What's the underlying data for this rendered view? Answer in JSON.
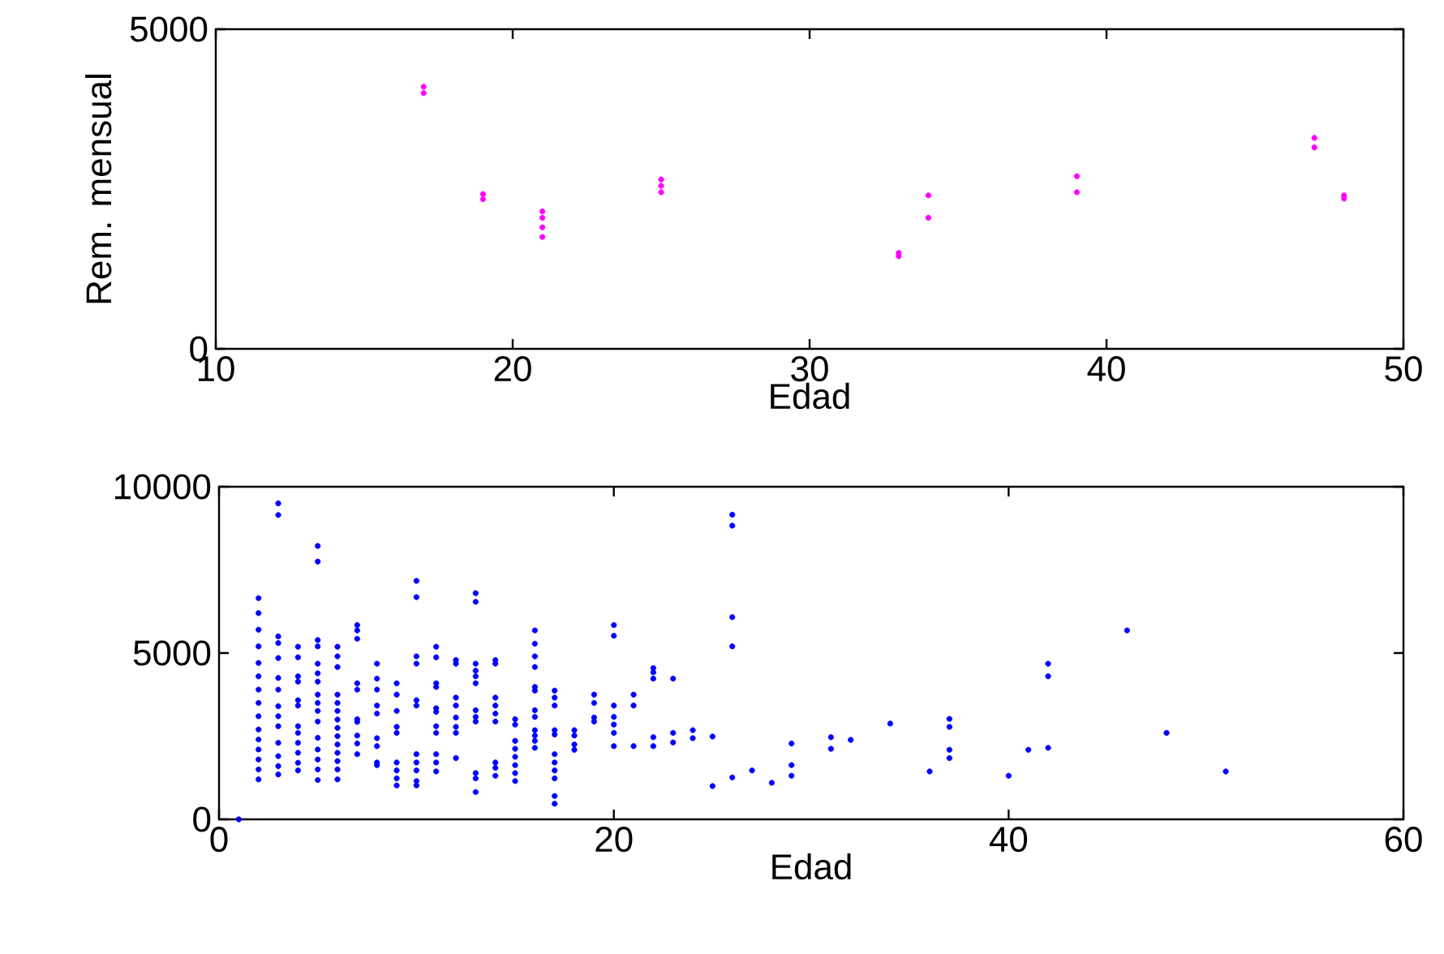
{
  "chart_data": [
    {
      "type": "scatter",
      "xlabel": "Edad",
      "ylabel": "Rem. mensual",
      "color": "#ff00ff",
      "marker": "circle",
      "xlim": [
        10,
        50
      ],
      "ylim": [
        0,
        5000
      ],
      "xticks": [
        10,
        20,
        30,
        40,
        50
      ],
      "yticks": [
        0,
        5000
      ],
      "x": [
        17,
        17,
        19,
        19,
        21,
        21,
        21,
        21,
        25,
        25,
        25,
        33,
        33,
        34,
        34,
        39,
        39,
        47,
        47,
        48,
        48
      ],
      "values": [
        4100,
        4000,
        2420,
        2340,
        2150,
        2050,
        1900,
        1750,
        2650,
        2550,
        2450,
        1500,
        1450,
        2400,
        2050,
        2700,
        2450,
        3300,
        3150,
        2400,
        2350
      ]
    },
    {
      "type": "scatter",
      "xlabel": "Edad",
      "color": "#0000ff",
      "marker": "circle",
      "xlim": [
        0,
        60
      ],
      "ylim": [
        0,
        10000
      ],
      "xticks": [
        0,
        20,
        40,
        60
      ],
      "yticks": [
        0,
        5000,
        10000
      ],
      "x": [
        1,
        2,
        2,
        2,
        2,
        2,
        2,
        2,
        2,
        2,
        2,
        2,
        2,
        2,
        2,
        2,
        3,
        3,
        3,
        3,
        3,
        3,
        3,
        3,
        3,
        3,
        3,
        3,
        3,
        3,
        4,
        4,
        4,
        4,
        4,
        4,
        4,
        4,
        4,
        4,
        4,
        4,
        5,
        5,
        5,
        5,
        5,
        5,
        5,
        5,
        5,
        5,
        5,
        5,
        5,
        5,
        5,
        5,
        6,
        6,
        6,
        6,
        6,
        6,
        6,
        6,
        6,
        6,
        6,
        6,
        6,
        6,
        7,
        7,
        7,
        7,
        7,
        7,
        7,
        7,
        7,
        7,
        8,
        8,
        8,
        8,
        8,
        8,
        8,
        8,
        8,
        9,
        9,
        9,
        9,
        9,
        9,
        9,
        9,
        9,
        10,
        10,
        10,
        10,
        10,
        10,
        10,
        10,
        10,
        10,
        10,
        11,
        11,
        11,
        11,
        11,
        11,
        11,
        11,
        11,
        11,
        11,
        12,
        12,
        12,
        12,
        12,
        12,
        12,
        12,
        13,
        13,
        13,
        13,
        13,
        13,
        13,
        13,
        13,
        13,
        13,
        13,
        14,
        14,
        14,
        14,
        14,
        14,
        14,
        14,
        14,
        15,
        15,
        15,
        15,
        15,
        15,
        15,
        15,
        16,
        16,
        16,
        16,
        16,
        16,
        16,
        16,
        16,
        16,
        16,
        16,
        17,
        17,
        17,
        17,
        17,
        17,
        17,
        17,
        17,
        17,
        17,
        18,
        18,
        18,
        18,
        19,
        19,
        19,
        19,
        20,
        20,
        20,
        20,
        20,
        20,
        20,
        21,
        21,
        21,
        22,
        22,
        22,
        22,
        22,
        23,
        23,
        23,
        24,
        24,
        25,
        25,
        26,
        26,
        26,
        26,
        26,
        27,
        28,
        29,
        29,
        29,
        31,
        31,
        32,
        34,
        36,
        37,
        37,
        37,
        37,
        40,
        41,
        42,
        42,
        42,
        46,
        48,
        51
      ],
      "values": [
        0,
        6650,
        6200,
        5700,
        5200,
        4700,
        4300,
        3900,
        3500,
        3100,
        2700,
        2400,
        2100,
        1800,
        1500,
        1200,
        9500,
        9150,
        5500,
        5300,
        4850,
        4250,
        3900,
        3400,
        3100,
        2800,
        2300,
        1900,
        1600,
        1350,
        5190,
        4870,
        4300,
        4140,
        3580,
        3420,
        2800,
        2600,
        2300,
        2000,
        1700,
        1470,
        8220,
        7750,
        5390,
        5200,
        4680,
        4390,
        4140,
        3750,
        3500,
        3260,
        2940,
        2450,
        2100,
        1800,
        1500,
        1180,
        5190,
        4900,
        4580,
        3750,
        3500,
        3260,
        3000,
        2750,
        2500,
        2250,
        2000,
        1750,
        1500,
        1200,
        5840,
        5680,
        5430,
        4090,
        3900,
        3010,
        2930,
        2520,
        2280,
        1960,
        4680,
        4230,
        3900,
        3420,
        3180,
        2440,
        2200,
        1710,
        1630,
        4090,
        3750,
        3260,
        2780,
        2600,
        1710,
        1470,
        1230,
        1020,
        7170,
        6680,
        4900,
        4680,
        3580,
        3420,
        1960,
        1710,
        1470,
        1150,
        1020,
        5190,
        4870,
        4090,
        3980,
        3340,
        3230,
        2800,
        2600,
        1960,
        1710,
        1440,
        4790,
        4680,
        3660,
        3420,
        3060,
        2780,
        2600,
        1840,
        6800,
        6540,
        4680,
        4470,
        4300,
        4090,
        3280,
        3080,
        2940,
        1390,
        1230,
        820,
        4790,
        4680,
        3660,
        3420,
        3180,
        2940,
        1710,
        1550,
        1310,
        3010,
        2850,
        2360,
        2120,
        1880,
        1630,
        1390,
        1150,
        5680,
        5280,
        4900,
        4580,
        3980,
        3870,
        3280,
        3080,
        2680,
        2520,
        2360,
        2150,
        3870,
        3660,
        3420,
        2680,
        2550,
        1960,
        1710,
        1470,
        1230,
        700,
        470,
        2680,
        2520,
        2250,
        2090,
        3750,
        3500,
        3060,
        2940,
        5840,
        5520,
        3420,
        3080,
        2850,
        2600,
        2200,
        3750,
        3420,
        2200,
        4550,
        4420,
        4230,
        2470,
        2200,
        4230,
        2600,
        2310,
        2680,
        2440,
        2490,
        1000,
        9160,
        8830,
        6080,
        5200,
        1260,
        1470,
        1100,
        2280,
        1630,
        1310,
        2470,
        2120,
        2390,
        2880,
        1440,
        3020,
        2780,
        2090,
        1840,
        1310,
        2090,
        4680,
        4300,
        2150,
        5680,
        2600,
        1440
      ]
    }
  ]
}
